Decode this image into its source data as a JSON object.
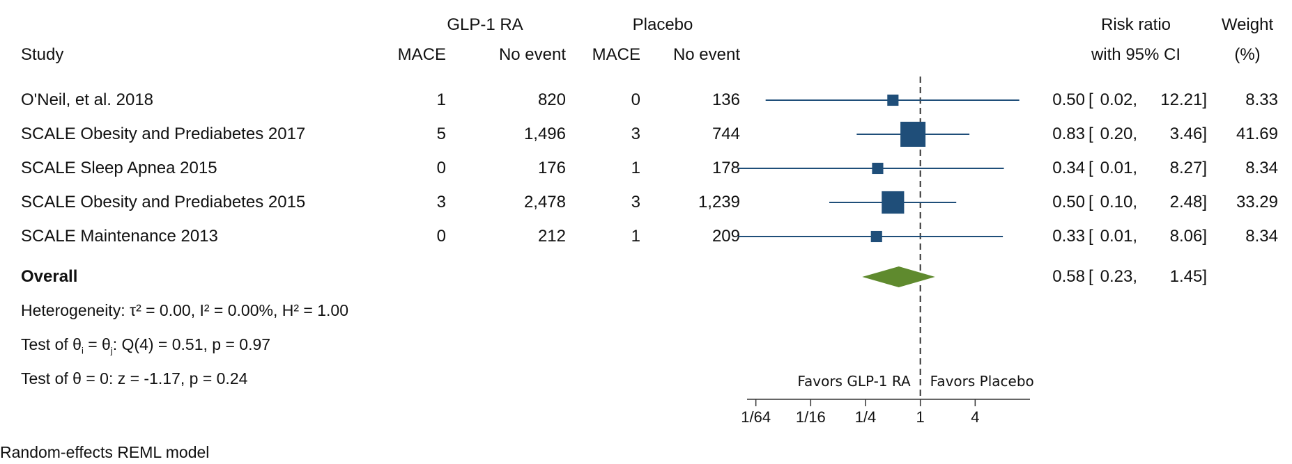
{
  "headers": {
    "group_a": "GLP-1 RA",
    "group_b": "Placebo",
    "study": "Study",
    "mace_a": "MACE",
    "noevent_a": "No event",
    "mace_b": "MACE",
    "noevent_b": "No event",
    "rr_line1": "Risk ratio",
    "rr_line2": "with 95% CI",
    "weight_line1": "Weight",
    "weight_line2": "(%)"
  },
  "chart_data": {
    "type": "forest",
    "xscale": "log2",
    "xlim": [
      0.0125,
      16
    ],
    "reference_line": 1,
    "xticks": [
      {
        "value": 0.015625,
        "label": "1/64"
      },
      {
        "value": 0.0625,
        "label": "1/16"
      },
      {
        "value": 0.25,
        "label": "1/4"
      },
      {
        "value": 1,
        "label": "1"
      },
      {
        "value": 4,
        "label": "4"
      }
    ],
    "favors_left": "Favors GLP-1 RA",
    "favors_right": "Favors Placebo",
    "marker_color": "#1f4e79",
    "overall_color": "#5f8a2e",
    "studies": [
      {
        "study": "O'Neil, et al. 2018",
        "mace_a": "1",
        "noevent_a": "820",
        "mace_b": "0",
        "noevent_b": "136",
        "rr": 0.5,
        "lo": 0.02,
        "hi": 12.21,
        "rr_text": "0.50",
        "lo_text": "0.02,",
        "hi_text": "12.21]",
        "weight": 8.33,
        "weight_text": "8.33"
      },
      {
        "study": "SCALE Obesity and Prediabetes 2017",
        "mace_a": "5",
        "noevent_a": "1,496",
        "mace_b": "3",
        "noevent_b": "744",
        "rr": 0.83,
        "lo": 0.2,
        "hi": 3.46,
        "rr_text": "0.83",
        "lo_text": "0.20,",
        "hi_text": "3.46]",
        "weight": 41.69,
        "weight_text": "41.69"
      },
      {
        "study": "SCALE Sleep Apnea 2015",
        "mace_a": "0",
        "noevent_a": "176",
        "mace_b": "1",
        "noevent_b": "178",
        "rr": 0.34,
        "lo": 0.01,
        "hi": 8.27,
        "rr_text": "0.34",
        "lo_text": "0.01,",
        "hi_text": "8.27]",
        "weight": 8.34,
        "weight_text": "8.34"
      },
      {
        "study": "SCALE Obesity and Prediabetes 2015",
        "mace_a": "3",
        "noevent_a": "2,478",
        "mace_b": "3",
        "noevent_b": "1,239",
        "rr": 0.5,
        "lo": 0.1,
        "hi": 2.48,
        "rr_text": "0.50",
        "lo_text": "0.10,",
        "hi_text": "2.48]",
        "weight": 33.29,
        "weight_text": "33.29"
      },
      {
        "study": "SCALE Maintenance 2013",
        "mace_a": "0",
        "noevent_a": "212",
        "mace_b": "1",
        "noevent_b": "209",
        "rr": 0.33,
        "lo": 0.01,
        "hi": 8.06,
        "rr_text": "0.33",
        "lo_text": "0.01,",
        "hi_text": "8.06]",
        "weight": 8.34,
        "weight_text": "8.34"
      }
    ],
    "overall": {
      "label": "Overall",
      "rr": 0.58,
      "lo": 0.23,
      "hi": 1.45,
      "rr_text": "0.58",
      "lo_text": "0.23,",
      "hi_text": "1.45]"
    }
  },
  "notes": {
    "heterogeneity": "Heterogeneity: τ² = 0.00, I² = 0.00%, H² = 1.00",
    "test_q_prefix": "Test of θ",
    "test_q_i": "i",
    "test_q_mid": " = θ",
    "test_q_j": "j",
    "test_q_suffix": ": Q(4) = 0.51, p = 0.97",
    "test_z": "Test of θ = 0: z = -1.17, p = 0.24",
    "model": "Random-effects REML model"
  }
}
